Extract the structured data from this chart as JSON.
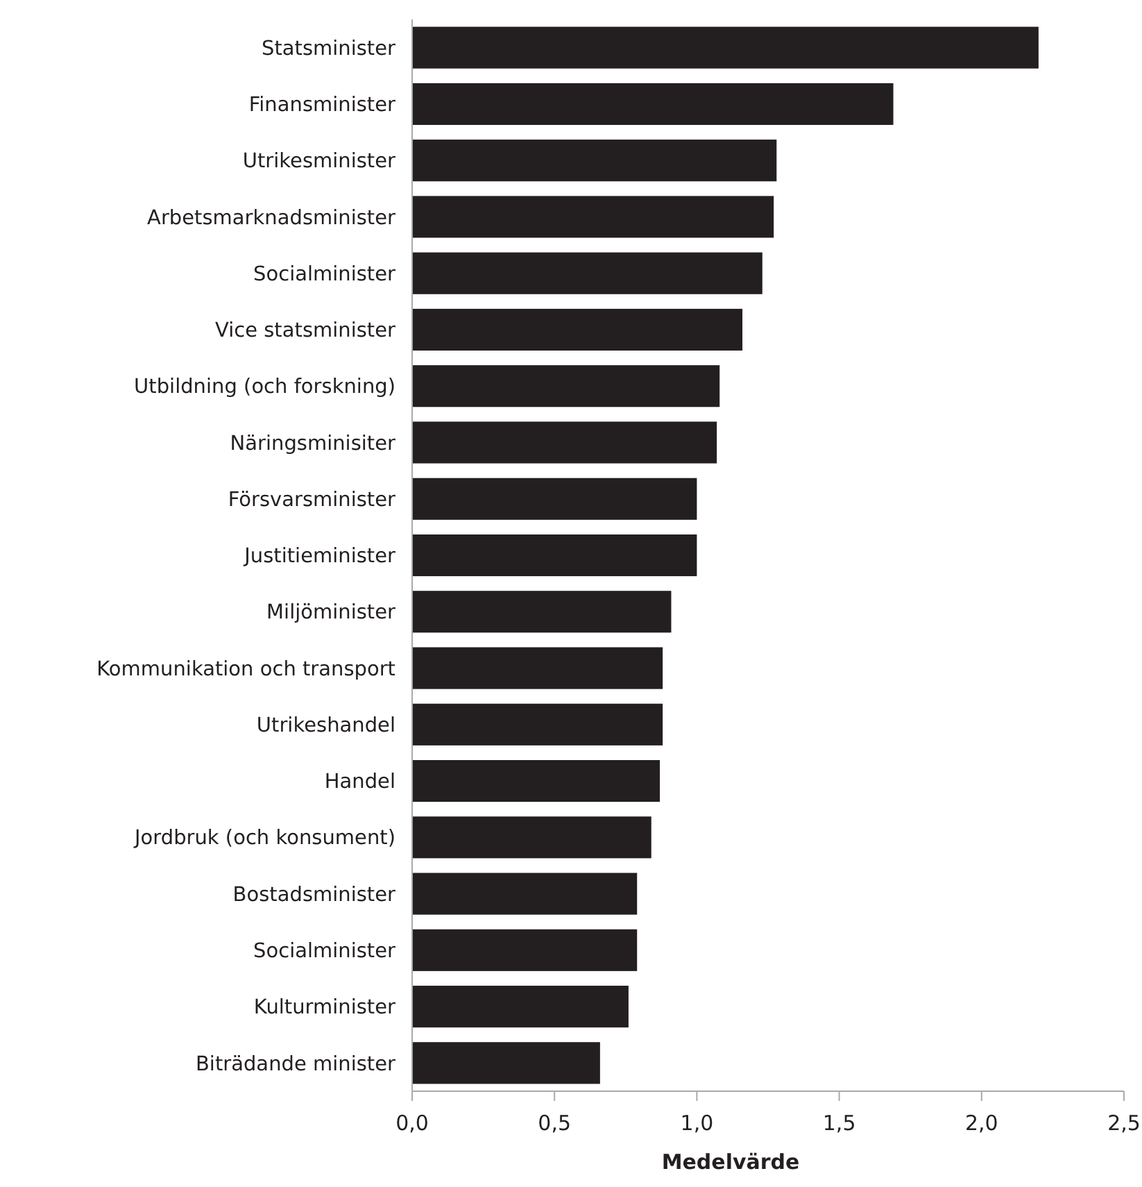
{
  "chart_data": {
    "type": "bar",
    "orientation": "horizontal",
    "xlabel": "Medelvärde",
    "categories": [
      "Statsminister",
      "Finansminister",
      "Utrikesminister",
      "Arbetsmarknadsminister",
      "Socialminister",
      "Vice statsminister",
      "Utbildning (och forskning)",
      "Näringsminisiter",
      "Försvarsminister",
      "Justitieminister",
      "Miljöminister",
      "Kommunikation och transport",
      "Utrikeshandel",
      "Handel",
      "Jordbruk (och konsument)",
      "Bostadsminister",
      "Socialminister",
      "Kulturminister",
      "Biträdande minister"
    ],
    "values": [
      2.2,
      1.69,
      1.28,
      1.27,
      1.23,
      1.16,
      1.08,
      1.07,
      1.0,
      1.0,
      0.91,
      0.88,
      0.88,
      0.87,
      0.84,
      0.79,
      0.79,
      0.76,
      0.66
    ],
    "color": "#231f20",
    "xlim": [
      0,
      2.5
    ],
    "xticks": [
      {
        "value": 0,
        "label": "0,0"
      },
      {
        "value": 0.5,
        "label": "0,5"
      },
      {
        "value": 1,
        "label": "1,0"
      },
      {
        "value": 1.5,
        "label": "1,5"
      },
      {
        "value": 2,
        "label": "2,0"
      },
      {
        "value": 2.5,
        "label": "2,5"
      }
    ],
    "grid": false
  }
}
